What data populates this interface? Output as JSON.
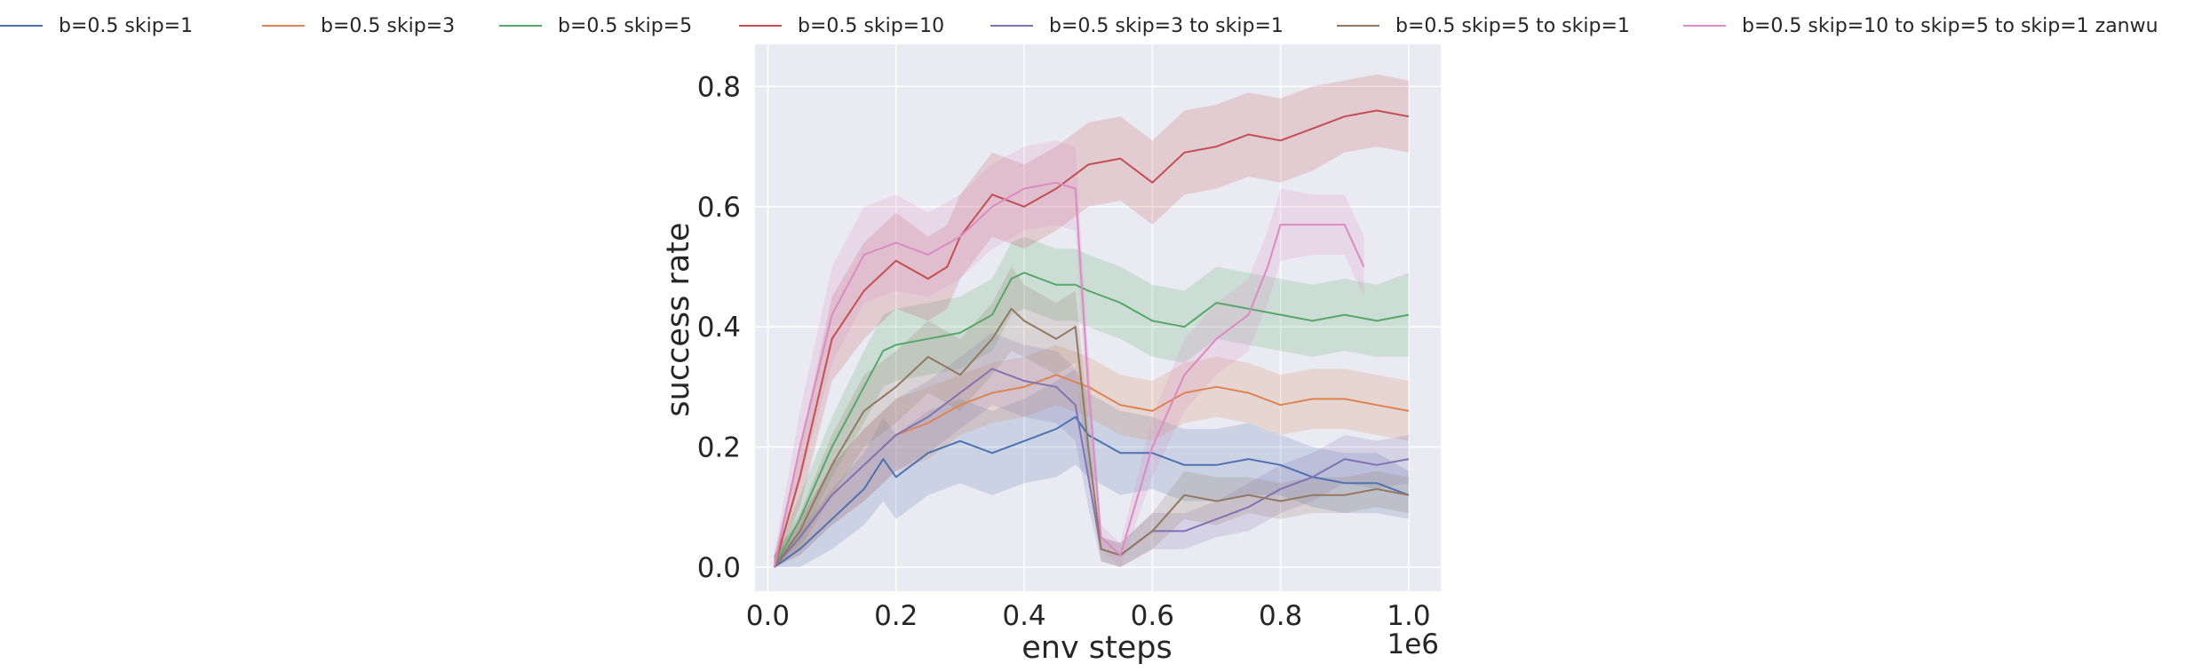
{
  "chart_data": {
    "type": "line",
    "title": "",
    "xlabel": "env steps",
    "ylabel": "success rate",
    "x_offset_label": "1e6",
    "xlim": [
      -0.02,
      1.05
    ],
    "ylim": [
      -0.04,
      0.87
    ],
    "xticks": [
      0.0,
      0.2,
      0.4,
      0.6,
      0.8,
      1.0
    ],
    "xtick_labels": [
      "0.0",
      "0.2",
      "0.4",
      "0.6",
      "0.8",
      "1.0"
    ],
    "yticks": [
      0.0,
      0.2,
      0.4,
      0.6,
      0.8
    ],
    "ytick_labels": [
      "0.0",
      "0.2",
      "0.4",
      "0.6",
      "0.8"
    ],
    "grid": true,
    "background": "#eaeaf2",
    "legend_position": "top",
    "series": [
      {
        "name": "b=0.5 skip=1",
        "color": "#4c72b0",
        "x": [
          0.01,
          0.05,
          0.1,
          0.15,
          0.18,
          0.2,
          0.25,
          0.3,
          0.35,
          0.4,
          0.45,
          0.48,
          0.5,
          0.55,
          0.6,
          0.65,
          0.7,
          0.75,
          0.8,
          0.85,
          0.9,
          0.95,
          1.0
        ],
        "y": [
          0.0,
          0.03,
          0.08,
          0.13,
          0.18,
          0.15,
          0.19,
          0.21,
          0.19,
          0.21,
          0.23,
          0.25,
          0.22,
          0.19,
          0.19,
          0.17,
          0.17,
          0.18,
          0.17,
          0.15,
          0.14,
          0.14,
          0.12
        ],
        "band": [
          0.02,
          0.03,
          0.05,
          0.06,
          0.07,
          0.07,
          0.07,
          0.07,
          0.07,
          0.07,
          0.08,
          0.08,
          0.07,
          0.07,
          0.06,
          0.06,
          0.06,
          0.06,
          0.05,
          0.05,
          0.05,
          0.05,
          0.04
        ]
      },
      {
        "name": "b=0.5 skip=3",
        "color": "#dd8452",
        "x": [
          0.01,
          0.05,
          0.1,
          0.15,
          0.2,
          0.25,
          0.3,
          0.35,
          0.4,
          0.45,
          0.5,
          0.55,
          0.6,
          0.65,
          0.7,
          0.75,
          0.8,
          0.85,
          0.9,
          0.95,
          1.0
        ],
        "y": [
          0.0,
          0.05,
          0.12,
          0.17,
          0.22,
          0.24,
          0.27,
          0.29,
          0.3,
          0.32,
          0.3,
          0.27,
          0.26,
          0.29,
          0.3,
          0.29,
          0.27,
          0.28,
          0.28,
          0.27,
          0.26
        ],
        "band": [
          0.02,
          0.03,
          0.05,
          0.06,
          0.06,
          0.06,
          0.05,
          0.05,
          0.05,
          0.05,
          0.05,
          0.05,
          0.05,
          0.05,
          0.05,
          0.05,
          0.05,
          0.05,
          0.05,
          0.05,
          0.05
        ]
      },
      {
        "name": "b=0.5 skip=5",
        "color": "#55a868",
        "x": [
          0.01,
          0.05,
          0.1,
          0.15,
          0.18,
          0.2,
          0.25,
          0.3,
          0.35,
          0.38,
          0.4,
          0.45,
          0.48,
          0.5,
          0.55,
          0.6,
          0.65,
          0.7,
          0.75,
          0.8,
          0.85,
          0.9,
          0.95,
          1.0
        ],
        "y": [
          0.0,
          0.08,
          0.2,
          0.3,
          0.36,
          0.37,
          0.38,
          0.39,
          0.42,
          0.48,
          0.49,
          0.47,
          0.47,
          0.46,
          0.44,
          0.41,
          0.4,
          0.44,
          0.43,
          0.42,
          0.41,
          0.42,
          0.41,
          0.42
        ],
        "band": [
          0.02,
          0.04,
          0.05,
          0.06,
          0.06,
          0.06,
          0.06,
          0.06,
          0.06,
          0.06,
          0.06,
          0.06,
          0.06,
          0.06,
          0.06,
          0.06,
          0.06,
          0.06,
          0.06,
          0.06,
          0.06,
          0.06,
          0.06,
          0.07
        ]
      },
      {
        "name": "b=0.5 skip=10",
        "color": "#c44e52",
        "x": [
          0.01,
          0.05,
          0.1,
          0.15,
          0.2,
          0.25,
          0.28,
          0.3,
          0.35,
          0.4,
          0.45,
          0.5,
          0.55,
          0.6,
          0.65,
          0.7,
          0.75,
          0.8,
          0.85,
          0.9,
          0.95,
          1.0
        ],
        "y": [
          0.0,
          0.15,
          0.38,
          0.46,
          0.51,
          0.48,
          0.5,
          0.55,
          0.62,
          0.6,
          0.63,
          0.67,
          0.68,
          0.64,
          0.69,
          0.7,
          0.72,
          0.71,
          0.73,
          0.75,
          0.76,
          0.75
        ],
        "band": [
          0.02,
          0.05,
          0.07,
          0.08,
          0.08,
          0.07,
          0.07,
          0.07,
          0.07,
          0.07,
          0.07,
          0.07,
          0.07,
          0.07,
          0.07,
          0.07,
          0.07,
          0.07,
          0.07,
          0.06,
          0.06,
          0.06
        ]
      },
      {
        "name": "b=0.5 skip=3 to skip=1",
        "color": "#8172b3",
        "x": [
          0.01,
          0.05,
          0.1,
          0.15,
          0.2,
          0.25,
          0.3,
          0.35,
          0.4,
          0.45,
          0.48,
          0.5,
          0.52,
          0.55,
          0.6,
          0.65,
          0.7,
          0.75,
          0.8,
          0.85,
          0.9,
          0.95,
          1.0
        ],
        "y": [
          0.0,
          0.05,
          0.12,
          0.17,
          0.22,
          0.25,
          0.29,
          0.33,
          0.31,
          0.3,
          0.27,
          0.15,
          0.03,
          0.02,
          0.06,
          0.06,
          0.08,
          0.1,
          0.13,
          0.15,
          0.18,
          0.17,
          0.18
        ],
        "band": [
          0.02,
          0.03,
          0.05,
          0.06,
          0.06,
          0.06,
          0.06,
          0.06,
          0.06,
          0.06,
          0.06,
          0.05,
          0.02,
          0.02,
          0.03,
          0.03,
          0.03,
          0.04,
          0.04,
          0.04,
          0.04,
          0.04,
          0.04
        ]
      },
      {
        "name": "b=0.5 skip=5 to skip=1",
        "color": "#937860",
        "x": [
          0.01,
          0.05,
          0.1,
          0.15,
          0.2,
          0.25,
          0.3,
          0.35,
          0.38,
          0.4,
          0.45,
          0.48,
          0.5,
          0.52,
          0.55,
          0.6,
          0.65,
          0.7,
          0.75,
          0.8,
          0.85,
          0.9,
          0.95,
          1.0
        ],
        "y": [
          0.0,
          0.06,
          0.17,
          0.26,
          0.3,
          0.35,
          0.32,
          0.38,
          0.43,
          0.41,
          0.38,
          0.4,
          0.2,
          0.03,
          0.02,
          0.06,
          0.12,
          0.11,
          0.12,
          0.11,
          0.12,
          0.12,
          0.13,
          0.12
        ],
        "band": [
          0.02,
          0.03,
          0.05,
          0.06,
          0.06,
          0.06,
          0.06,
          0.06,
          0.07,
          0.06,
          0.06,
          0.06,
          0.05,
          0.02,
          0.02,
          0.03,
          0.04,
          0.04,
          0.03,
          0.03,
          0.03,
          0.03,
          0.03,
          0.03
        ]
      },
      {
        "name": "b=0.5 skip=10 to skip=5 to skip=1 zanwu",
        "color": "#da8bc3",
        "x": [
          0.01,
          0.05,
          0.1,
          0.15,
          0.2,
          0.25,
          0.3,
          0.35,
          0.4,
          0.45,
          0.48,
          0.5,
          0.52,
          0.55,
          0.6,
          0.65,
          0.7,
          0.75,
          0.78,
          0.8,
          0.85,
          0.9,
          0.93
        ],
        "y": [
          0.0,
          0.2,
          0.42,
          0.52,
          0.54,
          0.52,
          0.55,
          0.6,
          0.63,
          0.64,
          0.63,
          0.3,
          0.05,
          0.02,
          0.2,
          0.32,
          0.38,
          0.42,
          0.5,
          0.57,
          0.57,
          0.57,
          0.5
        ],
        "band": [
          0.02,
          0.06,
          0.08,
          0.08,
          0.08,
          0.07,
          0.07,
          0.07,
          0.07,
          0.07,
          0.07,
          0.06,
          0.02,
          0.02,
          0.05,
          0.06,
          0.06,
          0.06,
          0.06,
          0.06,
          0.05,
          0.05,
          0.05
        ]
      }
    ]
  }
}
